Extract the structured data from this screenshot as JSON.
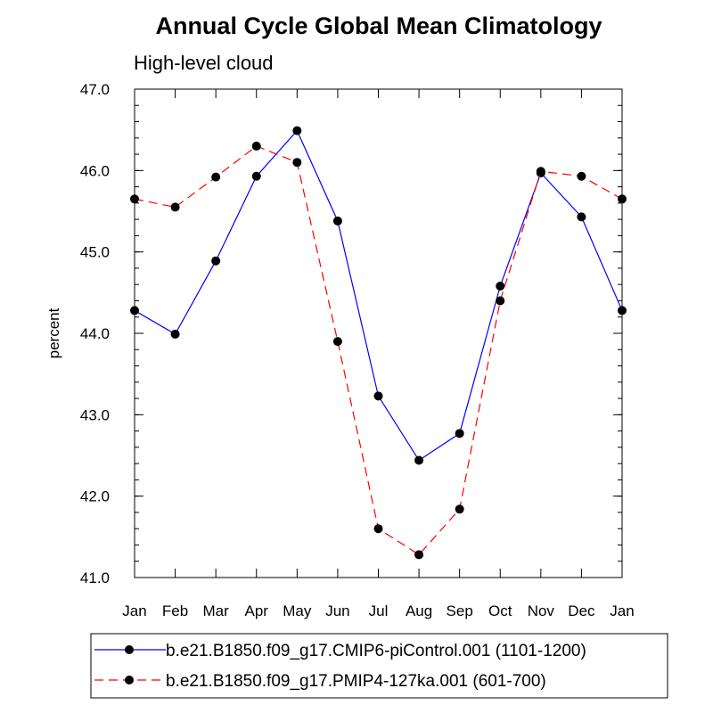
{
  "chart_data": {
    "type": "line",
    "title": "Annual Cycle Global Mean Climatology",
    "subtitle": "High-level cloud",
    "xlabel": "",
    "ylabel": "percent",
    "categories": [
      "Jan",
      "Feb",
      "Mar",
      "Apr",
      "May",
      "Jun",
      "Jul",
      "Aug",
      "Sep",
      "Oct",
      "Nov",
      "Dec",
      "Jan"
    ],
    "ylim": [
      41.0,
      47.0
    ],
    "yticks": [
      "41.0",
      "42.0",
      "43.0",
      "44.0",
      "45.0",
      "46.0",
      "47.0"
    ],
    "yticks_values": [
      41.0,
      42.0,
      43.0,
      44.0,
      45.0,
      46.0,
      47.0
    ],
    "grid": false,
    "legend_placement": "bottom",
    "series": [
      {
        "name": "b.e21.B1850.f09_g17.CMIP6-piControl.001 (1101-1200)",
        "color": "#0000ff",
        "line_style": "solid",
        "values": [
          44.28,
          43.99,
          44.89,
          45.93,
          46.49,
          45.38,
          43.23,
          42.44,
          42.77,
          44.58,
          45.97,
          45.43,
          44.28
        ]
      },
      {
        "name": "b.e21.B1850.f09_g17.PMIP4-127ka.001 (601-700)",
        "color": "#ff0000",
        "line_style": "dashed",
        "values": [
          45.65,
          45.55,
          45.92,
          46.3,
          46.1,
          43.9,
          41.6,
          41.28,
          41.84,
          44.4,
          45.99,
          45.93,
          45.65
        ]
      }
    ]
  }
}
